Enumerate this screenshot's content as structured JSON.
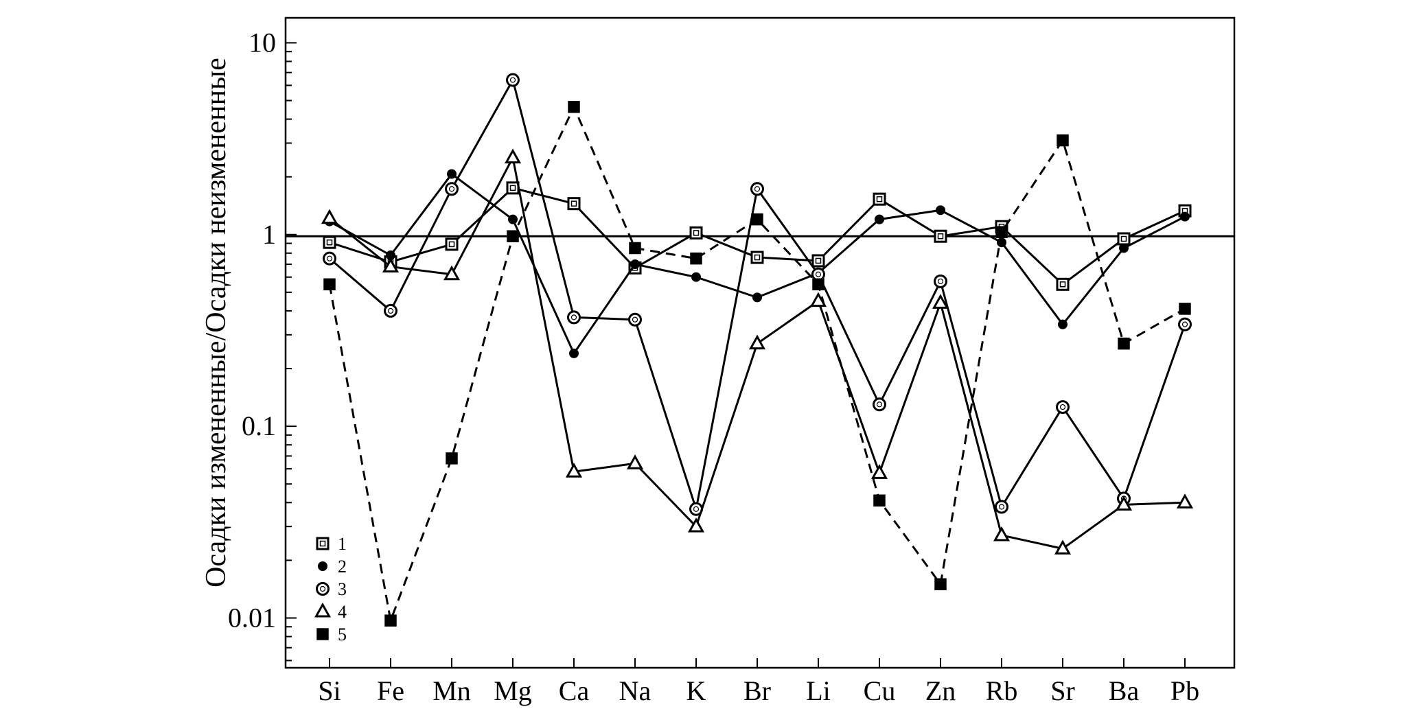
{
  "chart_data": {
    "type": "line",
    "ylabel": "Осадки измененные/Осадки неизмененные",
    "xlabel": "",
    "yscale": "log",
    "ylim": [
      0.0055,
      13.5
    ],
    "yticks": [
      {
        "value": 10,
        "label": "10"
      },
      {
        "value": 1,
        "label": "1"
      },
      {
        "value": 0.1,
        "label": "0.1"
      },
      {
        "value": 0.01,
        "label": "0.01"
      }
    ],
    "categories": [
      "Si",
      "Fe",
      "Mn",
      "Mg",
      "Ca",
      "Na",
      "K",
      "Br",
      "Li",
      "Cu",
      "Zn",
      "Rb",
      "Sr",
      "Ba",
      "Pb"
    ],
    "reference_line": 0.98,
    "legend_position": "bottom-left",
    "series": [
      {
        "name": "1",
        "marker": "square-open",
        "dash": "solid",
        "values": [
          0.91,
          0.72,
          0.89,
          1.75,
          1.45,
          0.67,
          1.02,
          0.76,
          0.73,
          1.53,
          0.98,
          1.1,
          0.55,
          0.95,
          1.33
        ]
      },
      {
        "name": "2",
        "marker": "circle-filled",
        "dash": "solid",
        "values": [
          1.17,
          0.78,
          2.07,
          1.2,
          0.24,
          0.7,
          0.6,
          0.47,
          0.63,
          1.2,
          1.34,
          0.91,
          0.34,
          0.85,
          1.24
        ]
      },
      {
        "name": "3",
        "marker": "circle-open",
        "dash": "solid",
        "values": [
          0.75,
          0.4,
          1.73,
          6.4,
          0.37,
          0.36,
          0.037,
          1.73,
          0.62,
          0.13,
          0.57,
          0.038,
          0.126,
          0.042,
          0.34
        ]
      },
      {
        "name": "4",
        "marker": "triangle-open",
        "dash": "solid",
        "values": [
          1.22,
          0.68,
          0.62,
          2.52,
          0.058,
          0.064,
          0.03,
          0.27,
          0.45,
          0.057,
          0.44,
          0.027,
          0.023,
          0.039,
          0.04
        ]
      },
      {
        "name": "5",
        "marker": "square-filled",
        "dash": "dashed",
        "values": [
          0.55,
          0.0097,
          0.068,
          0.98,
          4.63,
          0.85,
          0.75,
          1.2,
          0.55,
          0.041,
          0.015,
          1.03,
          3.1,
          0.27,
          0.41
        ]
      }
    ]
  }
}
